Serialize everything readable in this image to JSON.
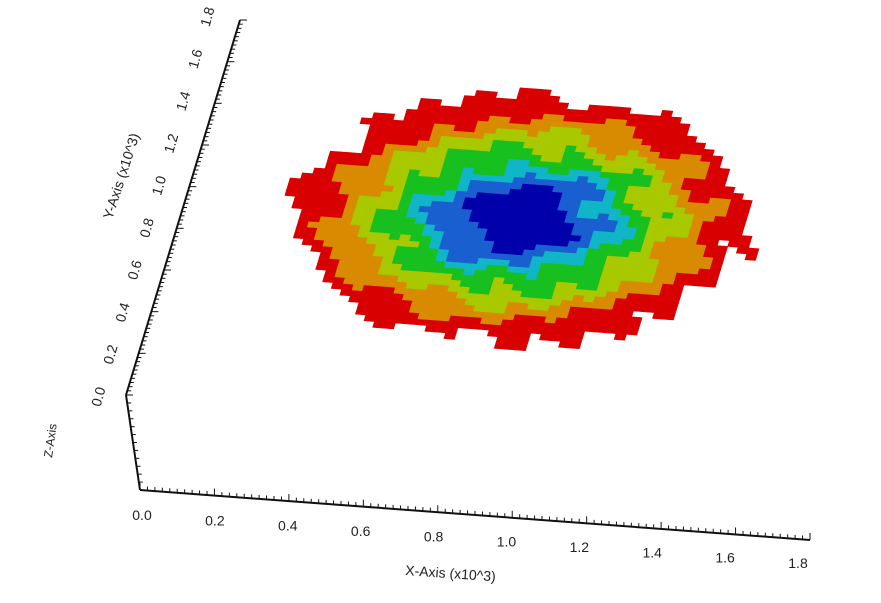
{
  "chart_data": {
    "type": "heatmap",
    "title": "",
    "xlabel": "X-Axis (x10^3)",
    "ylabel": "Y-Axis (x10^3)",
    "zlabel": "Z-Axis",
    "xlim": [
      0,
      1.8
    ],
    "ylim": [
      0,
      1.8
    ],
    "x_ticks": [
      "0.0",
      "0.2",
      "0.4",
      "0.6",
      "0.8",
      "1.0",
      "1.2",
      "1.4",
      "1.6",
      "1.8"
    ],
    "y_ticks": [
      "0.0",
      "0.2",
      "0.4",
      "0.6",
      "0.8",
      "1.0",
      "1.2",
      "1.4",
      "1.6",
      "1.8"
    ],
    "grid": false,
    "legend": "none",
    "colormap": [
      "#0000aa",
      "#1a5fd0",
      "#11b5c8",
      "#17c01f",
      "#a8c800",
      "#d88a00",
      "#d80000"
    ],
    "region": {
      "center_x": 0.88,
      "center_y": 0.95,
      "outer_radius_x": 0.6,
      "outer_radius_y": 0.58,
      "band_levels": [
        1,
        0.85,
        0.72,
        0.58,
        0.46,
        0.36,
        0.24
      ]
    }
  }
}
